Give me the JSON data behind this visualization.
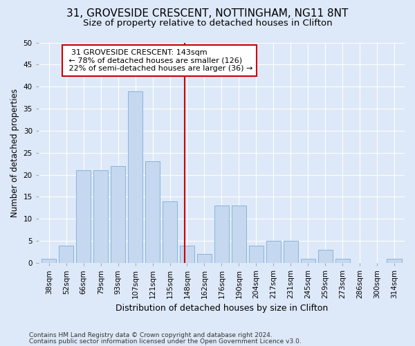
{
  "title": "31, GROVESIDE CRESCENT, NOTTINGHAM, NG11 8NT",
  "subtitle": "Size of property relative to detached houses in Clifton",
  "xlabel": "Distribution of detached houses by size in Clifton",
  "ylabel": "Number of detached properties",
  "categories": [
    "38sqm",
    "52sqm",
    "66sqm",
    "79sqm",
    "93sqm",
    "107sqm",
    "121sqm",
    "135sqm",
    "148sqm",
    "162sqm",
    "176sqm",
    "190sqm",
    "204sqm",
    "217sqm",
    "231sqm",
    "245sqm",
    "259sqm",
    "273sqm",
    "286sqm",
    "300sqm",
    "314sqm"
  ],
  "values": [
    1,
    4,
    21,
    21,
    22,
    39,
    23,
    14,
    4,
    2,
    13,
    13,
    4,
    5,
    5,
    1,
    3,
    1,
    0,
    0,
    1
  ],
  "bar_color": "#c5d8f0",
  "bar_edge_color": "#7aadd4",
  "vline_x_index": 7.87,
  "vline_color": "#cc0000",
  "annotation_text": "  31 GROVESIDE CRESCENT: 143sqm  \n ← 78% of detached houses are smaller (126)\n 22% of semi-detached houses are larger (36) →",
  "annotation_box_facecolor": "#ffffff",
  "annotation_box_edgecolor": "#cc0000",
  "ylim": [
    0,
    50
  ],
  "yticks": [
    0,
    5,
    10,
    15,
    20,
    25,
    30,
    35,
    40,
    45,
    50
  ],
  "footnote_line1": "Contains HM Land Registry data © Crown copyright and database right 2024.",
  "footnote_line2": "Contains public sector information licensed under the Open Government Licence v3.0.",
  "background_color": "#dde8f8",
  "title_fontsize": 11,
  "subtitle_fontsize": 9.5,
  "xlabel_fontsize": 9,
  "ylabel_fontsize": 8.5,
  "annotation_fontsize": 8,
  "tick_fontsize": 7.5,
  "footnote_fontsize": 6.5
}
